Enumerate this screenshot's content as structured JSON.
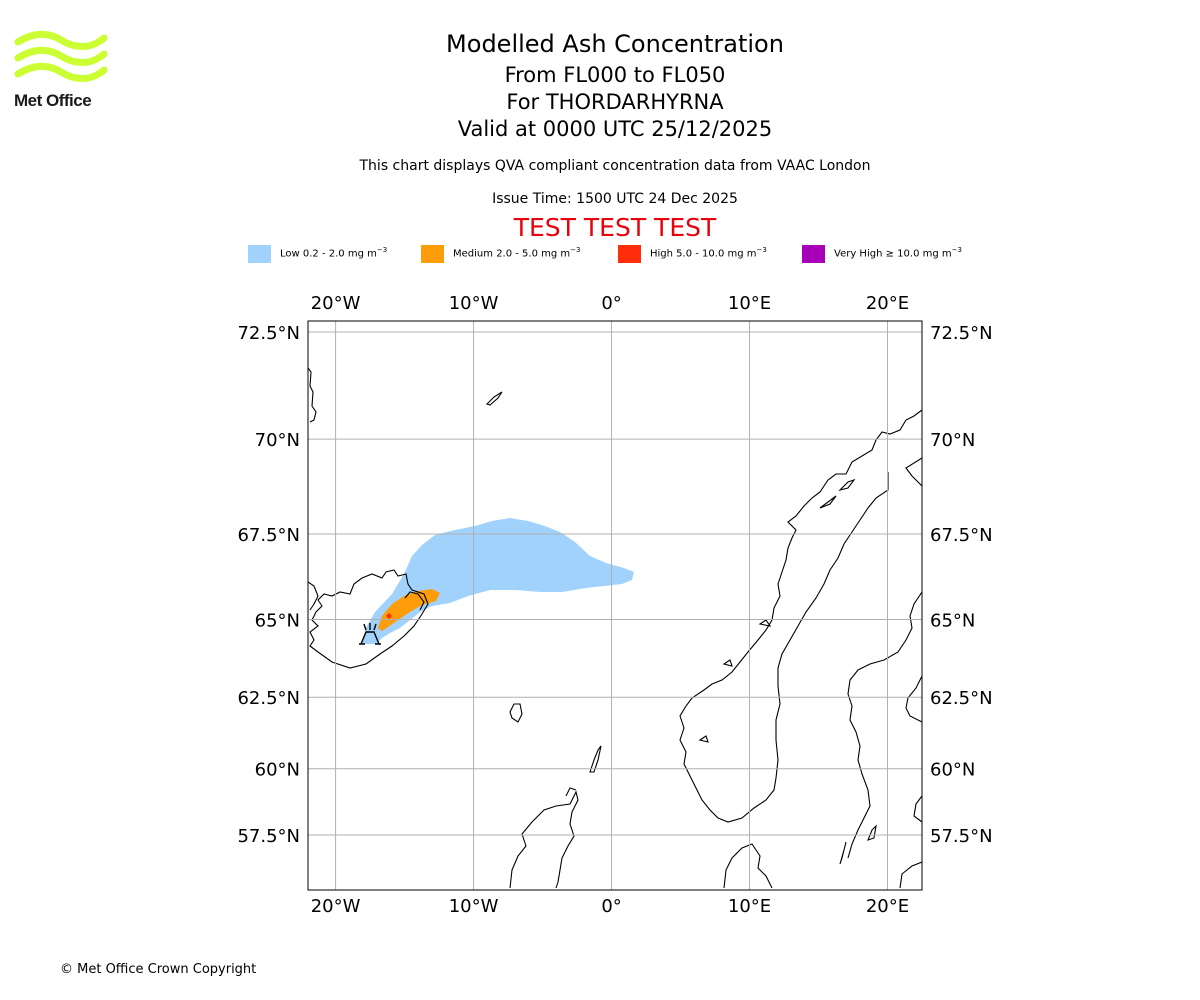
{
  "logo": {
    "wordmark": "Met Office",
    "colors": {
      "waves": "#ccff33"
    }
  },
  "header": {
    "title": "Modelled Ash Concentration",
    "flight_levels": "From FL000 to FL050",
    "volcano": "For THORDARHYRNA",
    "valid_time": "Valid at 0000 UTC 25/12/2025",
    "subtitle": "This chart displays QVA compliant concentration data from VAAC London",
    "issue_time": "Issue Time: 1500 UTC 24 Dec 2025",
    "test_banner": "TEST TEST TEST"
  },
  "legend": [
    {
      "name": "Low",
      "range": "0.2 - 2.0 mg m",
      "color": "#a0d2fc"
    },
    {
      "name": "Medium",
      "range": "2.0 - 5.0 mg m",
      "color": "#ff9c0a"
    },
    {
      "name": "High",
      "range": "5.0 - 10.0 mg m",
      "color": "#ff2d0a"
    },
    {
      "name": "Very High",
      "range": "≥ 10.0 mg m",
      "color": "#a700b8"
    }
  ],
  "legend_exponent": "−3",
  "map": {
    "extent": {
      "lon": [
        -22,
        22.5
      ],
      "lat": [
        55.8,
        72.8
      ]
    },
    "lon_ticks": [
      {
        "value": -20,
        "label": "20°W"
      },
      {
        "value": -10,
        "label": "10°W"
      },
      {
        "value": 0,
        "label": "0°"
      },
      {
        "value": 10,
        "label": "10°E"
      },
      {
        "value": 20,
        "label": "20°E"
      }
    ],
    "lat_ticks": [
      {
        "value": 72.5,
        "label": "72.5°N"
      },
      {
        "value": 70,
        "label": "70°N"
      },
      {
        "value": 67.5,
        "label": "67.5°N"
      },
      {
        "value": 65,
        "label": "65°N"
      },
      {
        "value": 62.5,
        "label": "62.5°N"
      },
      {
        "value": 60,
        "label": "60°N"
      },
      {
        "value": 57.5,
        "label": "57.5°N"
      }
    ],
    "volcano_location": {
      "lon": -17.5,
      "lat": 64.4
    },
    "colors": {
      "grid": "#b0b0b0",
      "coast": "#000000"
    }
  },
  "footer": {
    "copyright": "© Met Office Crown Copyright"
  }
}
